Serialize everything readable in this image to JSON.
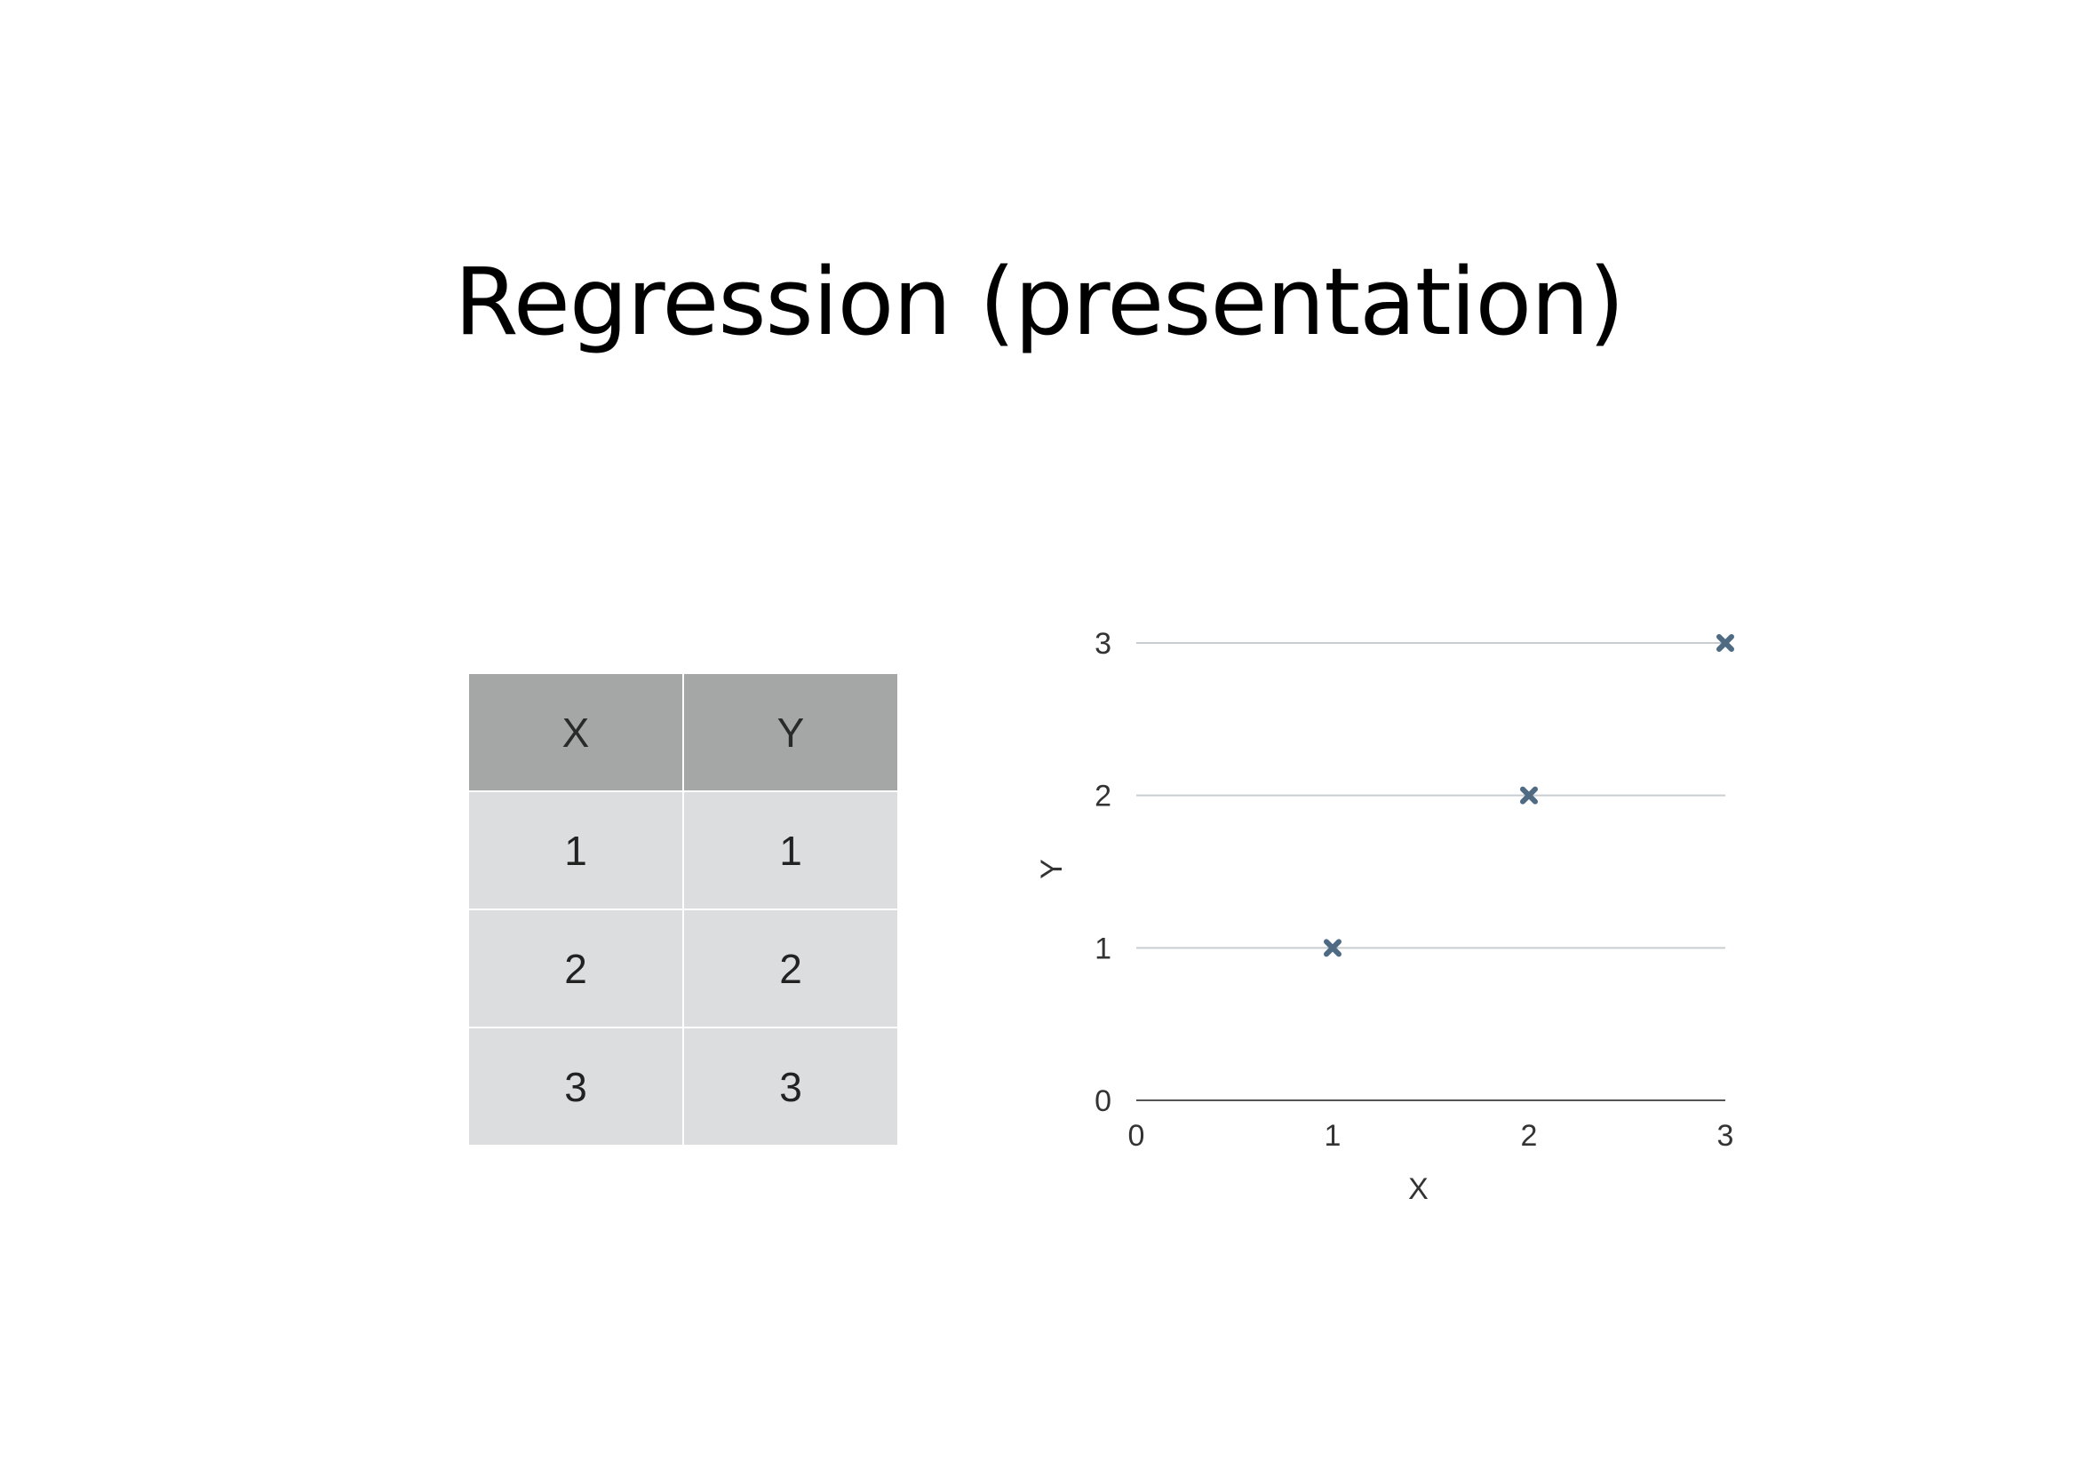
{
  "slide": {
    "title": "Regression (presentation)"
  },
  "table": {
    "headers": [
      "X",
      "Y"
    ],
    "rows": [
      [
        "1",
        "1"
      ],
      [
        "2",
        "2"
      ],
      [
        "3",
        "3"
      ]
    ]
  },
  "colors": {
    "header_fill": "#a5a7a6",
    "cell_fill": "#dcdddf",
    "marker": "#4f6b84",
    "gridline": "#c8cdd0",
    "axis": "#555555"
  },
  "chart_data": {
    "type": "scatter",
    "title": "",
    "xlabel": "X",
    "ylabel": "Y",
    "xlim": [
      0,
      3
    ],
    "ylim": [
      0,
      3
    ],
    "xticks": [
      0,
      1,
      2,
      3
    ],
    "yticks": [
      0,
      1,
      2,
      3
    ],
    "grid": "horizontal",
    "marker": "x",
    "points": [
      {
        "x": 1,
        "y": 1
      },
      {
        "x": 2,
        "y": 2
      },
      {
        "x": 3,
        "y": 3
      }
    ]
  }
}
